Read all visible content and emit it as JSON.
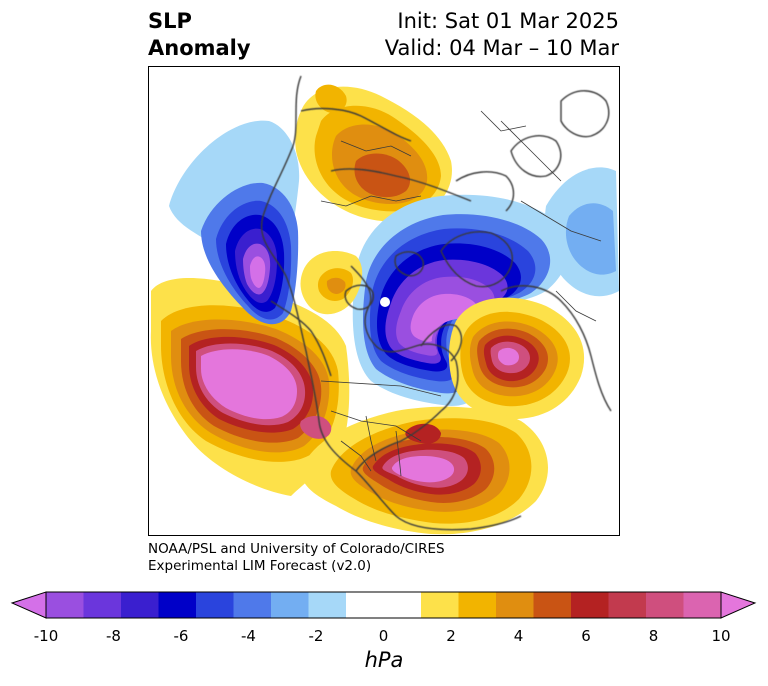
{
  "header": {
    "title_line1": "SLP",
    "title_line2": "Anomaly",
    "init_text": "Init: Sat 01 Mar 2025",
    "valid_text": "Valid: 04 Mar – 10 Mar"
  },
  "credit": {
    "line1": "NOAA/PSL and University of Colorado/CIRES",
    "line2": "Experimental LIM Forecast (v2.0)"
  },
  "colorbar": {
    "unit": "hPa",
    "ticks": [
      "-10",
      "-8",
      "-6",
      "-4",
      "-2",
      "0",
      "2",
      "4",
      "6",
      "8",
      "10"
    ],
    "colors": [
      "#9a4fe0",
      "#6b36dc",
      "#3a1fcf",
      "#0000c8",
      "#2a44dd",
      "#4f79ea",
      "#73aef2",
      "#a6d8f8",
      "#ffffff",
      "#ffffff",
      "#fde14a",
      "#f2b400",
      "#e08e10",
      "#c95414",
      "#b42222",
      "#c23a4e",
      "#cf4f7e",
      "#db64b0"
    ],
    "under_color": "#d470e8",
    "over_color": "#e476dc"
  },
  "colors": {
    "deep_negative": "#d470e8",
    "strong_negative": "#0000c8",
    "weak_negative": "#a6d8f8",
    "weak_positive": "#fde14a",
    "strong_positive": "#c95414",
    "deep_positive": "#e476dc",
    "coastline": "#3a3a3a"
  }
}
